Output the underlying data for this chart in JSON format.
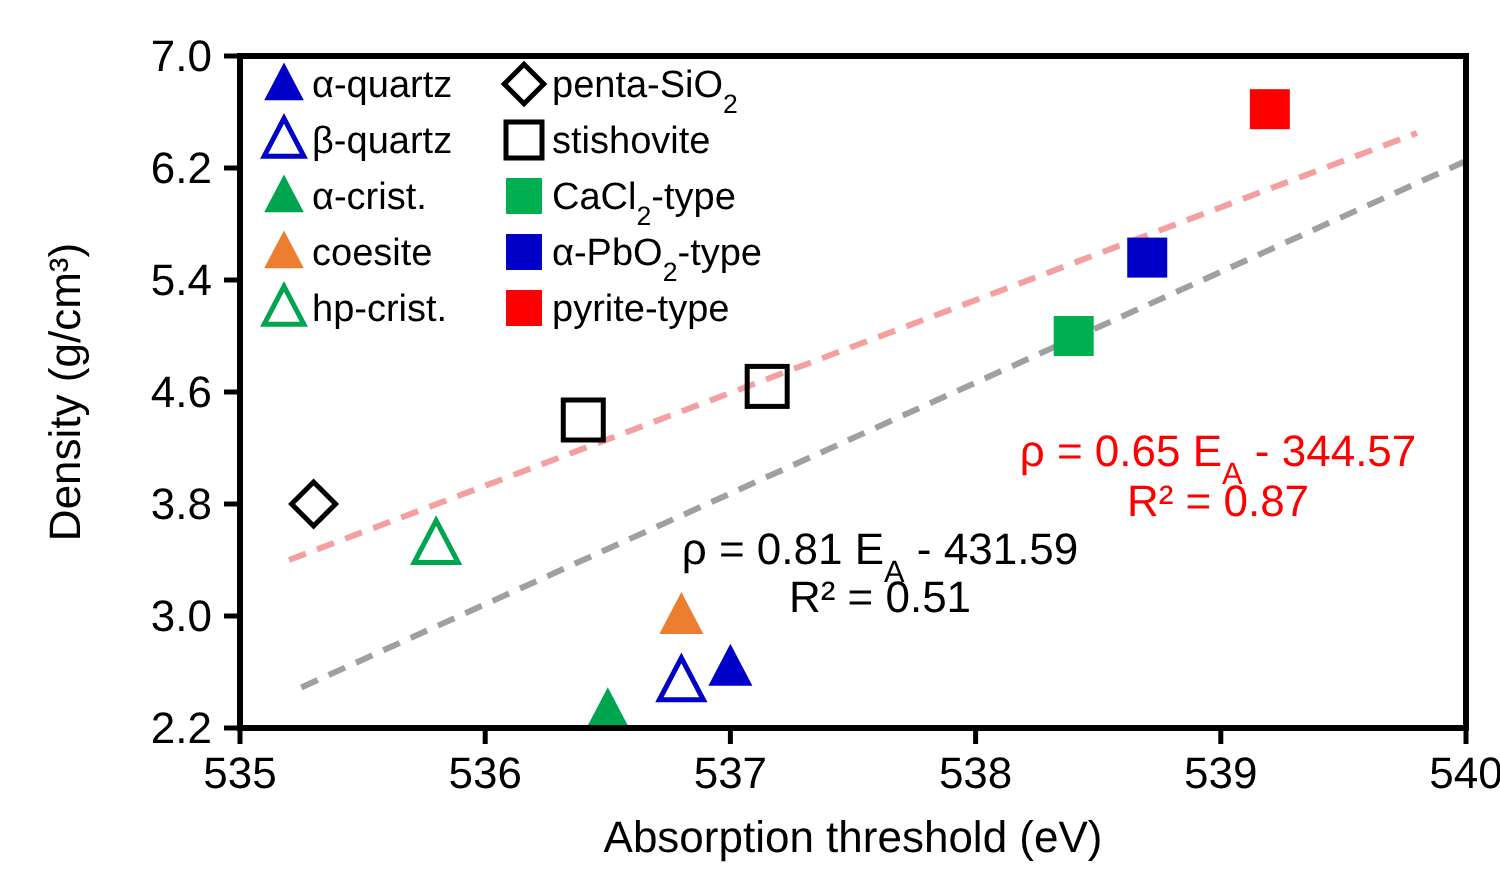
{
  "chart_data": {
    "type": "scatter",
    "xlabel": "Absorption threshold (eV)",
    "ylabel": "Density (g/cm³)",
    "xlim": [
      535,
      540
    ],
    "xticks": [
      535,
      536,
      537,
      538,
      539,
      540
    ],
    "ylim": [
      2.2,
      7.0
    ],
    "yticks": [
      2.2,
      {
        "value": 3,
        "label": "3.0"
      },
      3.8,
      4.6,
      5.4,
      6.2,
      {
        "value": 7,
        "label": "7.0"
      }
    ],
    "grid": false,
    "legend": "top left",
    "series": [
      {
        "name": "α-quartz",
        "color": "#0000c8",
        "marker": "triangle",
        "x": [
          537.0
        ],
        "values": [
          2.63
        ]
      },
      {
        "name": "β-quartz",
        "color": "#0000c8",
        "marker": "triangle",
        "x": [
          536.8
        ],
        "values": [
          2.53
        ]
      },
      {
        "name": "α-crist.",
        "color": "#00a550",
        "marker": "triangle",
        "x": [
          536.5
        ],
        "values": [
          2.32
        ]
      },
      {
        "name": "coesite",
        "color": "#ed7d31",
        "marker": "triangle",
        "x": [
          536.8
        ],
        "values": [
          3.0
        ]
      },
      {
        "name": "hp-crist.",
        "color": "#00a550",
        "marker": "triangle",
        "x": [
          535.8
        ],
        "values": [
          3.51
        ]
      },
      {
        "name": "penta-SiO$_{2}$",
        "color": "#000000",
        "marker": "diamond",
        "x": [
          535.3
        ],
        "values": [
          3.8
        ]
      },
      {
        "name": "stishovite",
        "color": "#000000",
        "marker": "square",
        "x": [
          536.4,
          537.15
        ],
        "values": [
          4.4,
          4.64
        ]
      },
      {
        "name": "CaCl$_{2}$-type",
        "color": "#00b050",
        "marker": "square",
        "x": [
          538.4
        ],
        "values": [
          5.0
        ]
      },
      {
        "name": "α-PbO$_{2}$-type",
        "color": "#0000c8",
        "marker": "square",
        "x": [
          538.7
        ],
        "values": [
          5.56
        ]
      },
      {
        "name": "pyrite-type",
        "color": "#ff0000",
        "marker": "square",
        "x": [
          539.2
        ],
        "values": [
          6.62
        ]
      },
      {
        "type": "line",
        "color": "#f4a0a0",
        "marker": "none",
        "line_style": "dashed",
        "x": [
          535.2,
          539.8
        ],
        "values": [
          3.4,
          6.45
        ]
      },
      {
        "type": "line",
        "color": "#a0a0a0",
        "marker": "none",
        "line_style": "dashed",
        "x": [
          535.25,
          540
        ],
        "values": [
          2.49,
          6.25
        ]
      }
    ],
    "annotations": [
      "ρ = 0.65 E$_{A}$ - 344.57",
      "R² = 0.87",
      "ρ = 0.81 E$_{A}$ - 431.59",
      "R² = 0.51"
    ]
  }
}
